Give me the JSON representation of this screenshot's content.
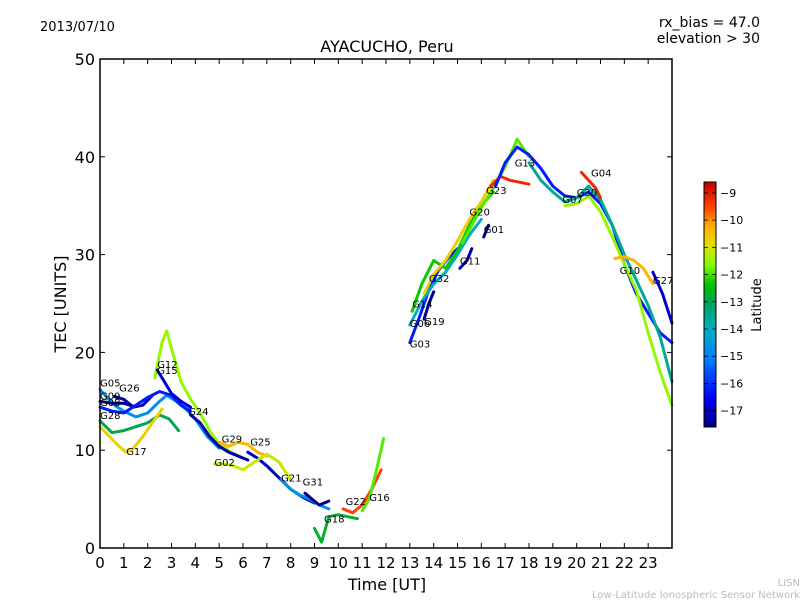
{
  "chart_data": {
    "type": "line",
    "date": "2013/07/10",
    "title": "AYACUCHO, Peru",
    "annotation": [
      "rx_bias = 47.0",
      "elevation > 30"
    ],
    "xlabel": "Time [UT]",
    "ylabel": "TEC [UNITS]",
    "xlim": [
      0,
      24
    ],
    "ylim": [
      0,
      50
    ],
    "xticks": [
      0,
      1,
      2,
      3,
      4,
      5,
      6,
      7,
      8,
      9,
      10,
      11,
      12,
      13,
      14,
      15,
      16,
      17,
      18,
      19,
      20,
      21,
      22,
      23
    ],
    "yticks": [
      0,
      10,
      20,
      30,
      40,
      50
    ],
    "colorbar": {
      "label": "Latitude",
      "range": [
        -17.6,
        -8.6
      ],
      "ticks": [
        -9,
        -10,
        -11,
        -12,
        -13,
        -14,
        -15,
        -16,
        -17
      ],
      "tick_labels": [
        "−9",
        "−10",
        "−11",
        "−12",
        "−13",
        "−14",
        "−15",
        "−16",
        "−17"
      ],
      "colormap": [
        "#00007f",
        "#0000ff",
        "#007fff",
        "#00b0c0",
        "#00a060",
        "#00c000",
        "#7fff00",
        "#e0e000",
        "#ffb000",
        "#ff4000",
        "#c00000"
      ]
    },
    "grid": false,
    "footer": [
      "LISN",
      "Low-Latitude Ionospheric Sensor Network"
    ],
    "series": [
      {
        "name": "G05",
        "label_at": [
          0.0,
          16.5
        ],
        "lat": -15.5,
        "x": [
          0.0,
          0.3,
          0.6,
          1.0,
          1.5,
          2.0,
          2.5,
          2.8,
          3.2,
          3.6,
          4.0,
          4.5,
          5.0
        ],
        "y": [
          16.2,
          15.4,
          14.6,
          14.0,
          13.4,
          13.8,
          15.0,
          15.6,
          15.0,
          14.2,
          13.2,
          11.4,
          10.2
        ]
      },
      {
        "name": "G26",
        "label_at": [
          0.8,
          16.0
        ],
        "lat": -17.2,
        "x": [
          0.6,
          1.0,
          1.4,
          1.8,
          2.2
        ],
        "y": [
          15.5,
          15.2,
          14.4,
          14.6,
          15.6
        ]
      },
      {
        "name": "G09",
        "label_at": [
          0.0,
          15.2
        ],
        "lat": -17.5,
        "x": [
          0.0,
          0.5,
          1.0,
          1.4
        ],
        "y": [
          15.0,
          14.8,
          14.8,
          14.5
        ]
      },
      {
        "name": "G08",
        "label_at": [
          0.0,
          14.5
        ],
        "lat": -16.5,
        "x": [
          0.0,
          0.5,
          1.0,
          1.5,
          2.0,
          2.5,
          3.0,
          3.4,
          3.8
        ],
        "y": [
          14.4,
          14.0,
          13.8,
          14.6,
          15.4,
          16.0,
          15.6,
          14.6,
          14.0
        ]
      },
      {
        "name": "G28",
        "label_at": [
          0.0,
          13.2
        ],
        "lat": -13.8,
        "x": [
          0.0,
          0.5,
          1.0,
          1.5,
          2.0,
          2.5,
          2.9,
          3.3
        ],
        "y": [
          13.0,
          11.8,
          12.0,
          12.4,
          12.8,
          13.6,
          13.2,
          12.0
        ]
      },
      {
        "name": "G17",
        "label_at": [
          1.1,
          9.5
        ],
        "lat": -11.0,
        "x": [
          0.0,
          0.4,
          0.8,
          1.1,
          1.4,
          1.8,
          2.2,
          2.6
        ],
        "y": [
          12.4,
          11.4,
          10.4,
          9.8,
          10.2,
          11.4,
          12.8,
          14.2
        ]
      },
      {
        "name": "G12",
        "label_at": [
          2.4,
          18.4
        ],
        "lat": -12.0,
        "x": [
          2.3,
          2.6,
          2.8,
          3.0,
          3.4,
          3.8,
          4.2,
          4.6,
          5.0,
          5.5,
          6.0
        ],
        "y": [
          17.4,
          21.0,
          22.2,
          20.4,
          17.0,
          15.2,
          13.8,
          12.0,
          10.6,
          9.8,
          9.2
        ]
      },
      {
        "name": "G15",
        "label_at": [
          2.4,
          17.8
        ],
        "lat": -17.0,
        "x": [
          2.4,
          2.7,
          3.0,
          3.4,
          3.8
        ],
        "y": [
          18.2,
          17.0,
          15.8,
          15.0,
          14.4
        ]
      },
      {
        "name": "G24",
        "label_at": [
          3.7,
          13.6
        ],
        "lat": -17.3,
        "x": [
          3.8,
          4.2,
          4.6,
          5.0,
          5.4,
          5.8,
          6.2
        ],
        "y": [
          13.6,
          12.8,
          11.4,
          10.4,
          9.8,
          9.4,
          9.0
        ]
      },
      {
        "name": "G29",
        "label_at": [
          5.1,
          10.8
        ],
        "lat": -10.5,
        "x": [
          5.0,
          5.4,
          5.8,
          6.2,
          6.6,
          7.0
        ],
        "y": [
          10.8,
          10.4,
          10.8,
          10.6,
          9.8,
          9.4
        ]
      },
      {
        "name": "G25",
        "label_at": [
          6.3,
          10.5
        ],
        "lat": -17.2,
        "x": [
          6.2,
          6.6,
          7.0,
          7.5,
          8.0,
          8.5,
          9.0
        ],
        "y": [
          9.8,
          9.2,
          8.4,
          7.2,
          6.0,
          5.2,
          4.6
        ]
      },
      {
        "name": "G02",
        "label_at": [
          4.8,
          8.4
        ],
        "lat": -11.5,
        "x": [
          4.8,
          5.2,
          5.6,
          6.0,
          6.5,
          7.0,
          7.5,
          8.0
        ],
        "y": [
          8.6,
          8.6,
          8.4,
          8.0,
          8.8,
          9.6,
          8.8,
          7.0
        ]
      },
      {
        "name": "G21",
        "label_at": [
          7.6,
          6.8
        ],
        "lat": -15.5,
        "x": [
          7.6,
          8.0,
          8.4,
          8.8,
          9.2,
          9.6
        ],
        "y": [
          7.0,
          6.0,
          5.4,
          5.0,
          4.4,
          4.0
        ]
      },
      {
        "name": "G31",
        "label_at": [
          8.5,
          6.4
        ],
        "lat": -17.5,
        "x": [
          8.6,
          9.0,
          9.2,
          9.6
        ],
        "y": [
          5.6,
          4.8,
          4.4,
          4.8
        ]
      },
      {
        "name": "G18",
        "label_at": [
          9.4,
          2.6
        ],
        "lat": -13.5,
        "x": [
          9.0,
          9.3,
          9.6,
          10.0,
          10.4,
          10.8
        ],
        "y": [
          2.0,
          0.6,
          3.2,
          3.4,
          3.2,
          3.0
        ]
      },
      {
        "name": "G22",
        "label_at": [
          10.3,
          4.4
        ],
        "lat": -9.5,
        "x": [
          10.2,
          10.6,
          11.0,
          11.4,
          11.8
        ],
        "y": [
          4.0,
          3.6,
          4.4,
          6.0,
          8.0
        ]
      },
      {
        "name": "G16",
        "label_at": [
          11.3,
          4.8
        ],
        "lat": -12.5,
        "x": [
          11.0,
          11.3,
          11.6,
          11.9
        ],
        "y": [
          3.8,
          5.0,
          8.0,
          11.2
        ]
      },
      {
        "name": "G03",
        "label_at": [
          13.0,
          20.5
        ],
        "lat": -16.5,
        "x": [
          13.0,
          13.4,
          13.8,
          14.2,
          14.6,
          15.0
        ],
        "y": [
          21.0,
          23.6,
          26.4,
          28.4,
          29.6,
          30.6
        ]
      },
      {
        "name": "G06",
        "label_at": [
          13.0,
          22.6
        ],
        "lat": -15.0,
        "x": [
          13.0,
          13.5,
          14.0,
          14.5,
          15.0,
          15.5,
          16.0
        ],
        "y": [
          22.8,
          25.2,
          27.0,
          28.2,
          30.0,
          32.0,
          33.6
        ]
      },
      {
        "name": "G19",
        "label_at": [
          13.6,
          22.8
        ],
        "lat": -17.5,
        "x": [
          13.6,
          13.8,
          14.0
        ],
        "y": [
          23.4,
          25.0,
          26.2
        ]
      },
      {
        "name": "G14",
        "label_at": [
          13.1,
          24.6
        ],
        "lat": -13.0,
        "x": [
          13.1,
          13.5,
          14.0,
          14.5,
          15.0,
          15.5,
          16.0,
          16.5
        ],
        "y": [
          24.2,
          27.0,
          29.4,
          28.6,
          30.4,
          33.0,
          35.0,
          36.4
        ]
      },
      {
        "name": "G32",
        "label_at": [
          13.8,
          27.2
        ],
        "lat": -11.0,
        "x": [
          13.6,
          14.0,
          14.5,
          15.0,
          15.5,
          16.0,
          16.5
        ],
        "y": [
          26.0,
          28.0,
          29.4,
          31.4,
          33.6,
          35.4,
          37.6
        ]
      },
      {
        "name": "G11",
        "label_at": [
          15.1,
          29.0
        ],
        "lat": -17.3,
        "x": [
          15.1,
          15.4,
          15.6
        ],
        "y": [
          28.6,
          29.4,
          30.6
        ]
      },
      {
        "name": "G01",
        "label_at": [
          16.1,
          32.2
        ],
        "lat": -17.5,
        "x": [
          16.1,
          16.3
        ],
        "y": [
          31.8,
          33.0
        ]
      },
      {
        "name": "G20",
        "label_at": [
          15.5,
          34.0
        ],
        "lat": -12.5,
        "x": [
          15.2,
          15.6,
          16.0,
          16.5,
          17.0,
          17.5,
          18.0
        ],
        "y": [
          31.2,
          33.0,
          34.8,
          36.8,
          39.0,
          41.8,
          40.0
        ]
      },
      {
        "name": "G23",
        "label_at": [
          16.2,
          36.2
        ],
        "lat": -9.2,
        "x": [
          16.4,
          16.8,
          17.2,
          17.6,
          18.0
        ],
        "y": [
          37.0,
          38.0,
          37.6,
          37.4,
          37.2
        ]
      },
      {
        "name": "G13",
        "label_at": [
          17.4,
          39.0
        ],
        "lat": -16.5,
        "x": [
          16.6,
          17.0,
          17.5,
          18.0,
          18.5,
          19.0,
          19.5,
          20.0,
          20.5,
          21.0,
          21.5,
          22.0,
          22.5,
          23.0,
          23.5,
          24.0
        ],
        "y": [
          37.0,
          39.4,
          41.0,
          40.2,
          38.8,
          37.0,
          36.0,
          35.8,
          36.4,
          35.2,
          33.0,
          29.0,
          26.0,
          24.0,
          22.0,
          21.0
        ]
      },
      {
        "name": "G07",
        "label_at": [
          19.4,
          35.3
        ],
        "lat": -14.5,
        "x": [
          18.0,
          18.5,
          19.0,
          19.5,
          20.0,
          20.5,
          21.0,
          21.5,
          22.0,
          22.5,
          23.0,
          23.5,
          24.0
        ],
        "y": [
          39.4,
          37.6,
          36.4,
          35.4,
          35.8,
          37.0,
          35.6,
          33.0,
          30.0,
          27.4,
          24.8,
          21.6,
          17.0
        ]
      },
      {
        "name": "G04",
        "label_at": [
          20.6,
          38.0
        ],
        "lat": -9.2,
        "x": [
          20.2,
          20.5,
          20.8,
          21.0
        ],
        "y": [
          38.4,
          37.6,
          36.8,
          35.8
        ]
      },
      {
        "name": "G30",
        "label_at": [
          20.0,
          36.0
        ],
        "lat": -12.0,
        "x": [
          19.5,
          20.0,
          20.5,
          21.0,
          21.5,
          22.0,
          22.5,
          23.0,
          23.5,
          24.0
        ],
        "y": [
          35.0,
          35.2,
          36.0,
          34.4,
          31.8,
          29.0,
          26.4,
          22.0,
          18.0,
          14.6
        ]
      },
      {
        "name": "G10",
        "label_at": [
          21.8,
          28.0
        ],
        "lat": -10.5,
        "x": [
          21.6,
          22.0,
          22.4,
          22.8,
          23.2
        ],
        "y": [
          29.6,
          29.8,
          29.4,
          28.6,
          27.0
        ]
      },
      {
        "name": "G27",
        "label_at": [
          23.2,
          27.0
        ],
        "lat": -17.0,
        "x": [
          23.2,
          23.6,
          24.0
        ],
        "y": [
          28.2,
          26.0,
          23.0
        ]
      }
    ]
  }
}
